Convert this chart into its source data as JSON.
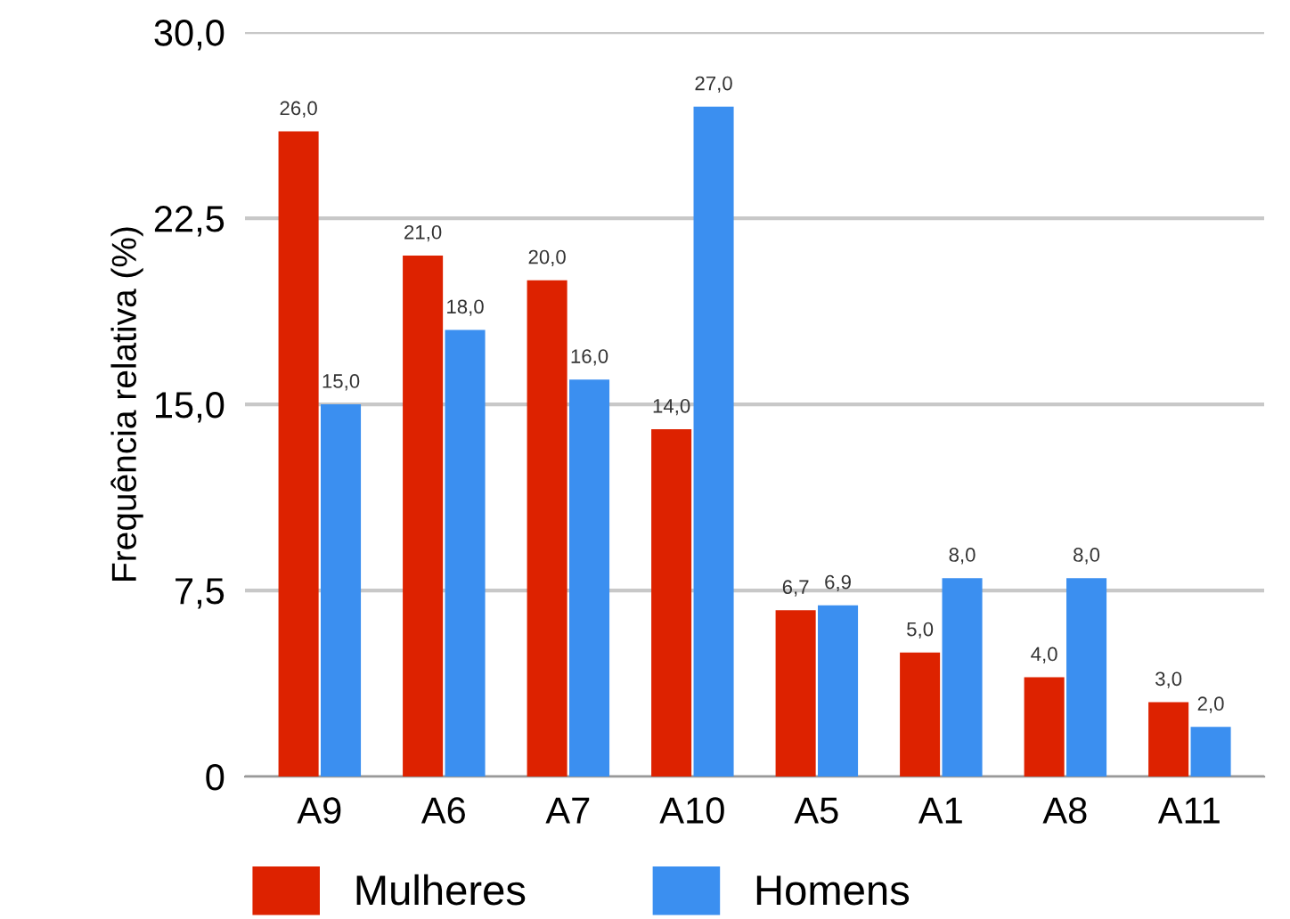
{
  "chart_data": {
    "type": "bar",
    "ylabel": "Frequência relativa (%)",
    "categories": [
      "A9",
      "A6",
      "A7",
      "A10",
      "A5",
      "A1",
      "A8",
      "A11"
    ],
    "series": [
      {
        "name": "Mulheres",
        "color": "#dd2200",
        "values": [
          26.0,
          21.0,
          20.0,
          14.0,
          6.7,
          5.0,
          4.0,
          3.0
        ],
        "value_labels": [
          "26,0",
          "21,0",
          "20,0",
          "14,0",
          "6,7",
          "5,0",
          "4,0",
          "3,0"
        ]
      },
      {
        "name": "Homens",
        "color": "#3b8ff0",
        "values": [
          15.0,
          18.0,
          16.0,
          27.0,
          6.9,
          8.0,
          8.0,
          2.0
        ],
        "value_labels": [
          "15,0",
          "18,0",
          "16,0",
          "27,0",
          "6,9",
          "8,0",
          "8,0",
          "2,0"
        ]
      }
    ],
    "ylim": [
      0,
      30
    ],
    "yticks": [
      0,
      {
        "value": 7.5,
        "label": "7,5"
      },
      {
        "value": 15,
        "label": "15,0"
      },
      {
        "value": 22.5,
        "label": "22,5"
      },
      {
        "value": 30,
        "label": "30,0"
      }
    ],
    "grid": "y",
    "legend": "bottom"
  }
}
